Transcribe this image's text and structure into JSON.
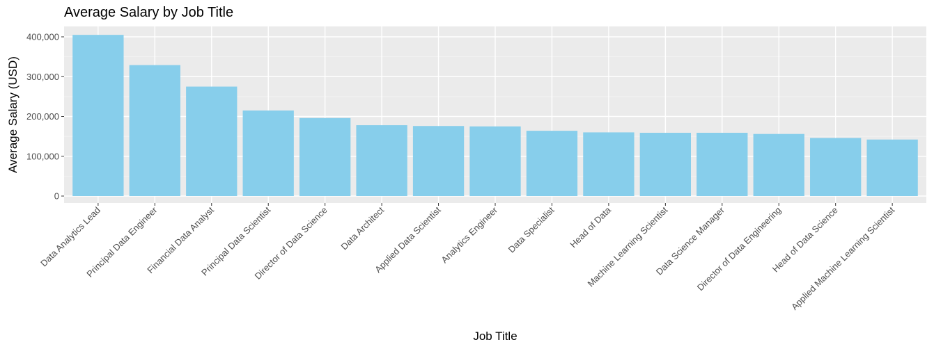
{
  "chart_data": {
    "type": "bar",
    "title": "Average Salary by Job Title",
    "xlabel": "Job Title",
    "ylabel": "Average Salary (USD)",
    "categories": [
      "Data Analytics Lead",
      "Principal Data Engineer",
      "Financial Data Analyst",
      "Principal Data Scientist",
      "Director of Data Science",
      "Data Architect",
      "Applied Data Scientist",
      "Analytics Engineer",
      "Data Specialist",
      "Head of Data",
      "Machine Learning Scientist",
      "Data Science Manager",
      "Director of Data Engineering",
      "Head of Data Science",
      "Applied Machine Learning Scientist"
    ],
    "values": [
      405000,
      329000,
      275000,
      215000,
      196000,
      178000,
      176000,
      175000,
      164000,
      160000,
      159000,
      159000,
      156000,
      146000,
      142000
    ],
    "ylim": [
      0,
      420000
    ],
    "yticks": [
      0,
      100000,
      200000,
      300000,
      400000
    ],
    "ytick_labels": [
      "0",
      "100,000",
      "200,000",
      "300,000",
      "400,000"
    ],
    "grid": true,
    "legend": "none",
    "colors": {
      "bar": "#87ceeb",
      "panel": "#ebebeb",
      "grid_major": "#ffffff",
      "text": "#4d4d4d"
    }
  }
}
